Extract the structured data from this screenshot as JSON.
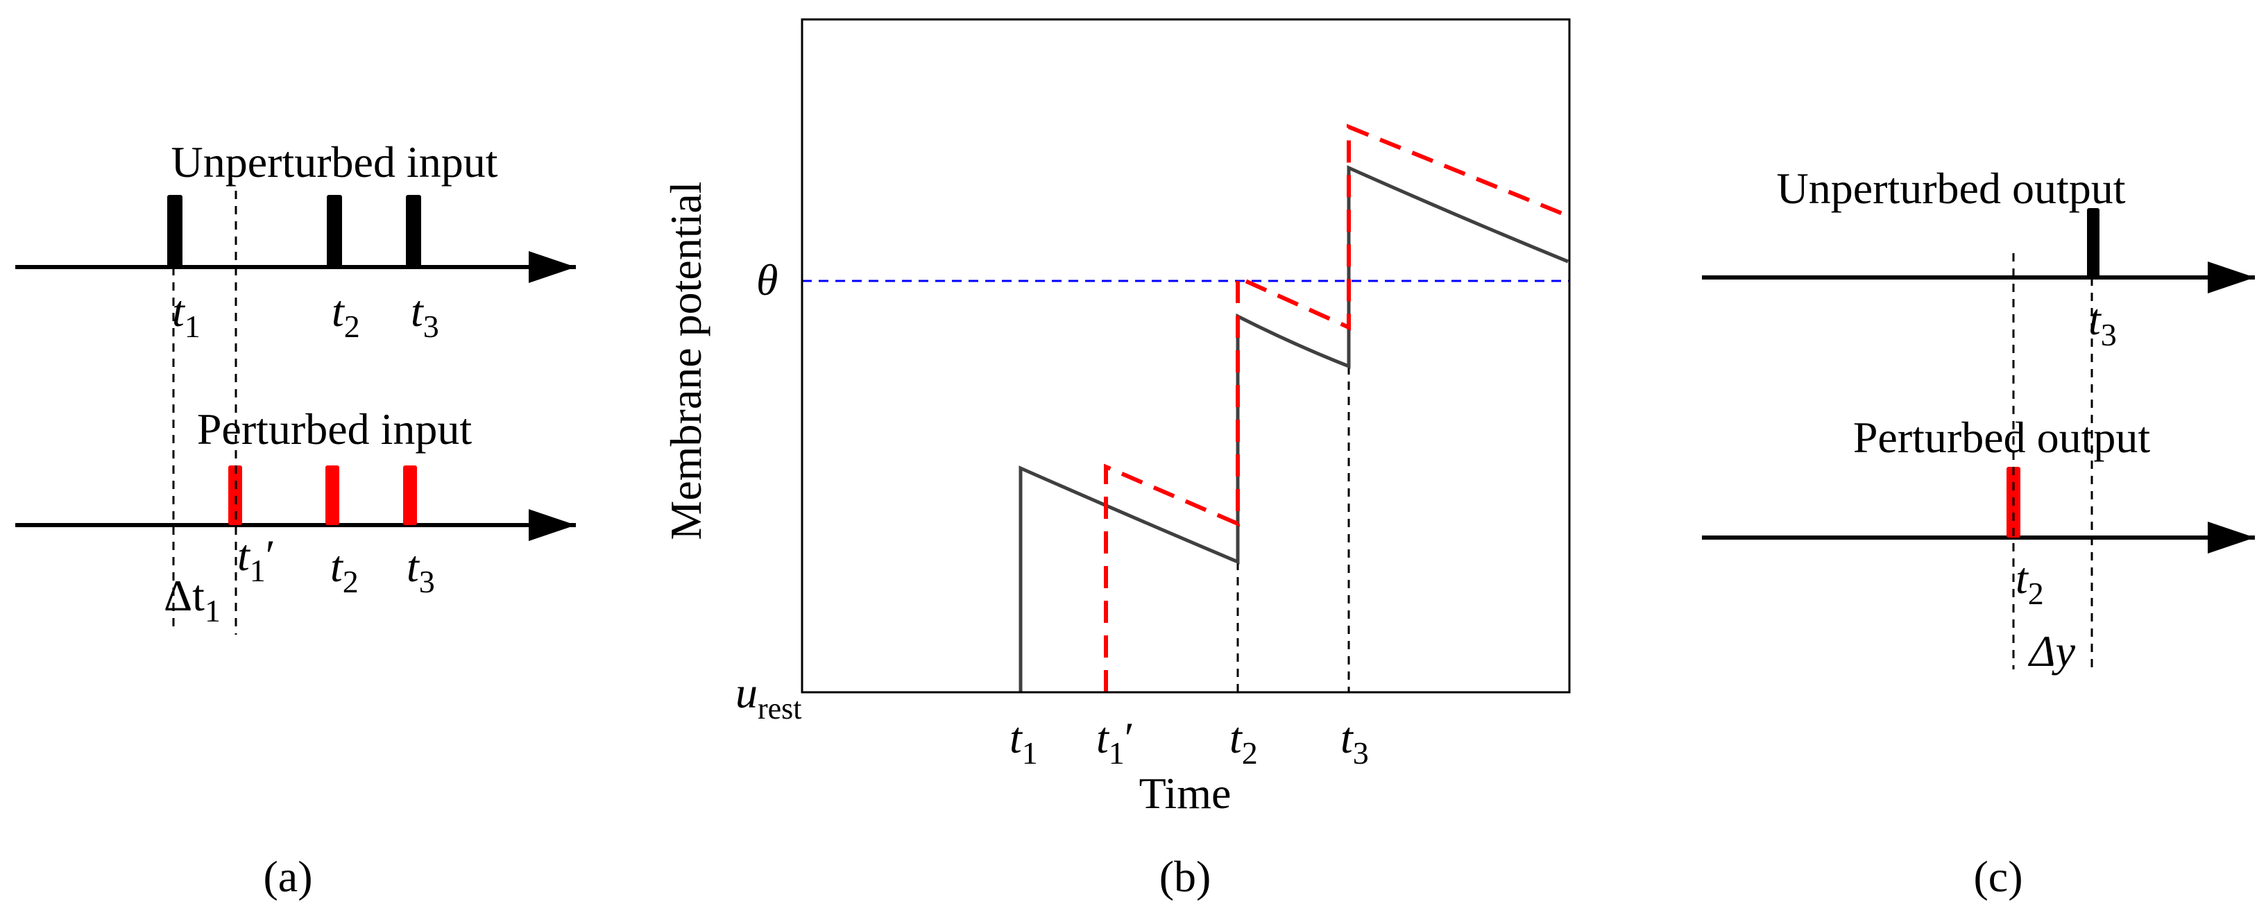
{
  "panels": {
    "a": {
      "label": "(a)",
      "unperturbed_title": "Unperturbed input",
      "perturbed_title": "Perturbed input",
      "spike_labels": {
        "t": "t",
        "sub1": "1",
        "sub2": "2",
        "sub3": "3",
        "prime": "′",
        "delta": "Δt",
        "delta_sub": "1"
      }
    },
    "b": {
      "label": "(b)",
      "y_axis_label": "Membrane potential",
      "x_axis_label": "Time",
      "theta_label": "θ",
      "u_label": "u",
      "u_sub": "rest",
      "ticks": {
        "t": "t",
        "sub1": "1",
        "sub2": "2",
        "sub3": "3",
        "prime": "′"
      }
    },
    "c": {
      "label": "(c)",
      "unperturbed_title": "Unperturbed output",
      "perturbed_title": "Perturbed output",
      "spike_labels": {
        "t": "t",
        "sub2": "2",
        "sub3": "3",
        "delta": "Δy"
      }
    }
  },
  "colors": {
    "unperturbed": "#000000",
    "perturbed": "#ff0000",
    "threshold": "#0000ff",
    "trace": "#404040"
  }
}
